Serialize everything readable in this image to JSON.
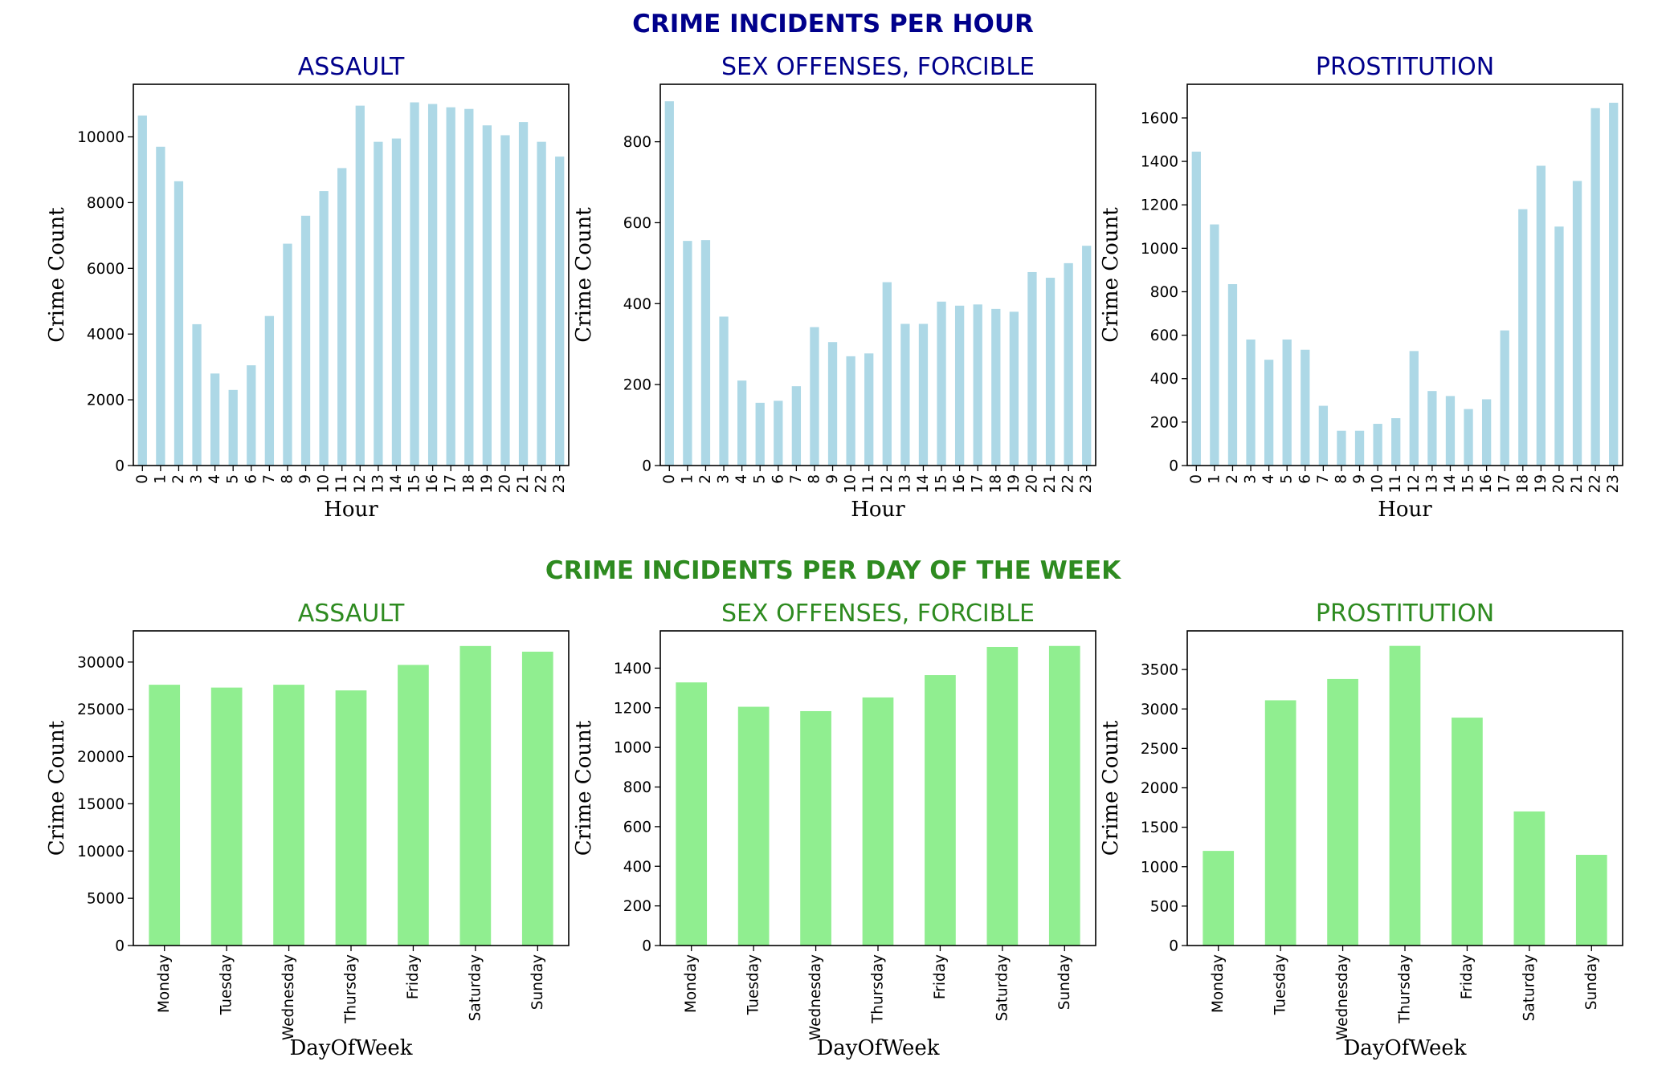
{
  "figure": {
    "hour_title": "CRIME INCIDENTS PER HOUR",
    "day_title": "CRIME INCIDENTS PER DAY OF THE WEEK",
    "colors": {
      "hour_title": "#00008b",
      "day_title": "#2e8b20",
      "hour_bar": "#add8e6",
      "day_bar": "#90ee90"
    }
  },
  "chart_data": [
    {
      "type": "bar",
      "title": "ASSAULT",
      "xlabel": "Hour",
      "ylabel": "Crime Count",
      "categories": [
        "0",
        "1",
        "2",
        "3",
        "4",
        "5",
        "6",
        "7",
        "8",
        "9",
        "10",
        "11",
        "12",
        "13",
        "14",
        "15",
        "16",
        "17",
        "18",
        "19",
        "20",
        "21",
        "22",
        "23"
      ],
      "values": [
        10650,
        9700,
        8650,
        4300,
        2800,
        2300,
        3050,
        4550,
        6750,
        7600,
        8350,
        9050,
        10950,
        9850,
        9950,
        11050,
        11000,
        10900,
        10850,
        10350,
        10050,
        10450,
        9850,
        9400
      ],
      "ylim": [
        0,
        11600
      ],
      "yticks": [
        0,
        2000,
        4000,
        6000,
        8000,
        10000
      ]
    },
    {
      "type": "bar",
      "title": "SEX OFFENSES, FORCIBLE",
      "xlabel": "Hour",
      "ylabel": "Crime Count",
      "categories": [
        "0",
        "1",
        "2",
        "3",
        "4",
        "5",
        "6",
        "7",
        "8",
        "9",
        "10",
        "11",
        "12",
        "13",
        "14",
        "15",
        "16",
        "17",
        "18",
        "19",
        "20",
        "21",
        "22",
        "23"
      ],
      "values": [
        900,
        555,
        557,
        368,
        210,
        155,
        160,
        196,
        342,
        305,
        270,
        277,
        453,
        350,
        350,
        405,
        395,
        398,
        387,
        380,
        478,
        464,
        500,
        543
      ],
      "ylim": [
        0,
        942
      ],
      "yticks": [
        0,
        200,
        400,
        600,
        800
      ]
    },
    {
      "type": "bar",
      "title": "PROSTITUTION",
      "xlabel": "Hour",
      "ylabel": "Crime Count",
      "categories": [
        "0",
        "1",
        "2",
        "3",
        "4",
        "5",
        "6",
        "7",
        "8",
        "9",
        "10",
        "11",
        "12",
        "13",
        "14",
        "15",
        "16",
        "17",
        "18",
        "19",
        "20",
        "21",
        "22",
        "23"
      ],
      "values": [
        1445,
        1110,
        835,
        580,
        487,
        580,
        533,
        275,
        160,
        160,
        192,
        218,
        527,
        343,
        320,
        260,
        305,
        622,
        1180,
        1380,
        1100,
        1310,
        1645,
        1670
      ],
      "ylim": [
        0,
        1755
      ],
      "yticks": [
        0,
        200,
        400,
        600,
        800,
        1000,
        1200,
        1400,
        1600
      ]
    },
    {
      "type": "bar",
      "title": "ASSAULT",
      "xlabel": "DayOfWeek",
      "ylabel": "Crime Count",
      "categories": [
        "Monday",
        "Tuesday",
        "Wednesday",
        "Thursday",
        "Friday",
        "Saturday",
        "Sunday"
      ],
      "values": [
        27600,
        27300,
        27600,
        27000,
        29700,
        31700,
        31100
      ],
      "ylim": [
        0,
        33300
      ],
      "yticks": [
        0,
        5000,
        10000,
        15000,
        20000,
        25000,
        30000
      ]
    },
    {
      "type": "bar",
      "title": "SEX OFFENSES, FORCIBLE",
      "xlabel": "DayOfWeek",
      "ylabel": "Crime Count",
      "categories": [
        "Monday",
        "Tuesday",
        "Wednesday",
        "Thursday",
        "Friday",
        "Saturday",
        "Sunday"
      ],
      "values": [
        1328,
        1205,
        1183,
        1252,
        1365,
        1507,
        1512
      ],
      "ylim": [
        0,
        1588
      ],
      "yticks": [
        0,
        200,
        400,
        600,
        800,
        1000,
        1200,
        1400
      ]
    },
    {
      "type": "bar",
      "title": "PROSTITUTION",
      "xlabel": "DayOfWeek",
      "ylabel": "Crime Count",
      "categories": [
        "Monday",
        "Tuesday",
        "Wednesday",
        "Thursday",
        "Friday",
        "Saturday",
        "Sunday"
      ],
      "values": [
        1200,
        3110,
        3380,
        3800,
        2890,
        1700,
        1150
      ],
      "ylim": [
        0,
        3990
      ],
      "yticks": [
        0,
        500,
        1000,
        1500,
        2000,
        2500,
        3000,
        3500
      ]
    }
  ]
}
